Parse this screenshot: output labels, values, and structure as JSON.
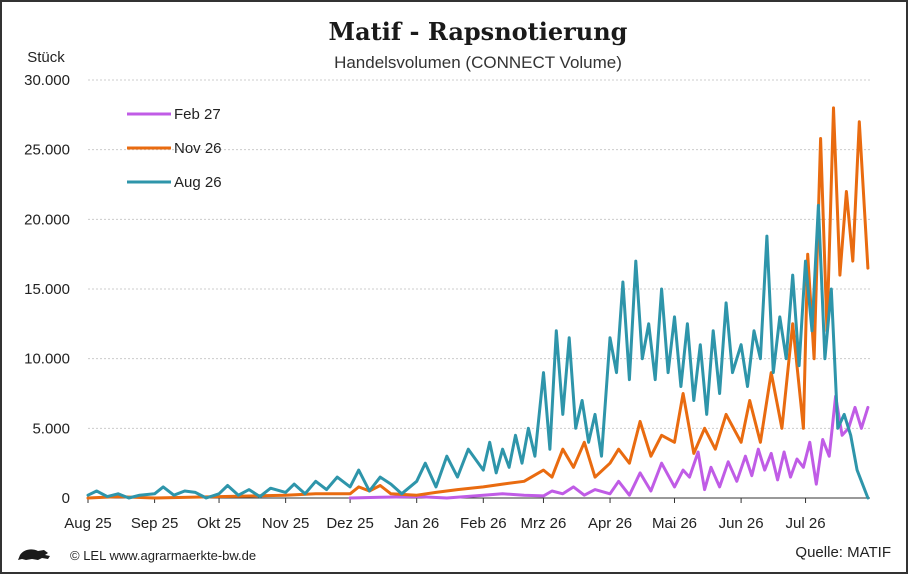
{
  "chart_data": {
    "type": "line",
    "title": "Matif - Rapsnotierung",
    "subtitle": "Handelsvolumen (CONNECT Volume)",
    "ylabel": "Stück",
    "xlabel": "",
    "ylim": [
      0,
      30000
    ],
    "yticks": [
      0,
      5000,
      10000,
      15000,
      20000,
      25000,
      30000
    ],
    "ytick_labels": [
      "0",
      "5.000",
      "10.000",
      "15.000",
      "20.000",
      "25.000",
      "30.000"
    ],
    "xlim": [
      "2025-08-01",
      "2026-07-31"
    ],
    "xticks": [
      "2025-08-01",
      "2025-09-01",
      "2025-10-01",
      "2025-11-01",
      "2025-12-01",
      "2026-01-01",
      "2026-02-01",
      "2026-03-01",
      "2026-04-01",
      "2026-05-01",
      "2026-06-01",
      "2026-07-01"
    ],
    "xtick_labels": [
      "Aug 25",
      "Sep 25",
      "Okt 25",
      "Nov 25",
      "Dez 25",
      "Jan 26",
      "Feb 26",
      "Mrz 26",
      "Apr 26",
      "Mai 26",
      "Jun 26",
      "Jul 26"
    ],
    "grid": "horizontal dotted",
    "legend_position": "top-left",
    "series": [
      {
        "name": "Feb 27",
        "color": "#c05ce6",
        "x": [
          "2025-12-01",
          "2025-12-15",
          "2026-01-02",
          "2026-01-15",
          "2026-02-01",
          "2026-02-10",
          "2026-02-20",
          "2026-03-01",
          "2026-03-05",
          "2026-03-10",
          "2026-03-15",
          "2026-03-20",
          "2026-03-25",
          "2026-04-01",
          "2026-04-05",
          "2026-04-10",
          "2026-04-15",
          "2026-04-20",
          "2026-04-25",
          "2026-05-01",
          "2026-05-05",
          "2026-05-08",
          "2026-05-12",
          "2026-05-15",
          "2026-05-18",
          "2026-05-22",
          "2026-05-26",
          "2026-05-30",
          "2026-06-03",
          "2026-06-06",
          "2026-06-09",
          "2026-06-12",
          "2026-06-15",
          "2026-06-18",
          "2026-06-21",
          "2026-06-24",
          "2026-06-27",
          "2026-06-30",
          "2026-07-03",
          "2026-07-06",
          "2026-07-09",
          "2026-07-12",
          "2026-07-15",
          "2026-07-18",
          "2026-07-21",
          "2026-07-24",
          "2026-07-27",
          "2026-07-30"
        ],
        "values": [
          0,
          50,
          100,
          0,
          200,
          300,
          200,
          150,
          500,
          300,
          800,
          200,
          600,
          300,
          1200,
          200,
          1800,
          500,
          2500,
          800,
          2000,
          1500,
          3300,
          600,
          2200,
          800,
          2600,
          1200,
          3000,
          1600,
          3500,
          2000,
          3200,
          1300,
          3300,
          1500,
          2800,
          2200,
          4000,
          1000,
          4200,
          3000,
          7300,
          4500,
          5000,
          6500,
          5000,
          6500
        ]
      },
      {
        "name": "Nov 26",
        "color": "#e96b10",
        "x": [
          "2025-08-01",
          "2025-08-15",
          "2025-09-01",
          "2025-10-01",
          "2025-11-01",
          "2025-11-15",
          "2025-12-01",
          "2025-12-05",
          "2025-12-10",
          "2025-12-15",
          "2025-12-20",
          "2026-01-01",
          "2026-01-10",
          "2026-01-20",
          "2026-02-01",
          "2026-02-10",
          "2026-02-20",
          "2026-03-01",
          "2026-03-05",
          "2026-03-10",
          "2026-03-15",
          "2026-03-20",
          "2026-03-25",
          "2026-04-01",
          "2026-04-05",
          "2026-04-10",
          "2026-04-15",
          "2026-04-20",
          "2026-04-25",
          "2026-05-01",
          "2026-05-05",
          "2026-05-10",
          "2026-05-15",
          "2026-05-20",
          "2026-05-25",
          "2026-06-01",
          "2026-06-05",
          "2026-06-10",
          "2026-06-15",
          "2026-06-20",
          "2026-06-25",
          "2026-06-30",
          "2026-07-02",
          "2026-07-05",
          "2026-07-08",
          "2026-07-11",
          "2026-07-14",
          "2026-07-17",
          "2026-07-20",
          "2026-07-23",
          "2026-07-26",
          "2026-07-30"
        ],
        "values": [
          0,
          100,
          0,
          100,
          200,
          300,
          300,
          800,
          500,
          900,
          300,
          200,
          400,
          600,
          800,
          1000,
          1200,
          2000,
          1500,
          3500,
          2200,
          4000,
          1500,
          2500,
          3500,
          2500,
          5500,
          3000,
          4500,
          4000,
          7500,
          3200,
          5000,
          3500,
          6000,
          4000,
          7000,
          4000,
          9000,
          5000,
          12500,
          5000,
          17500,
          10000,
          25800,
          12000,
          28000,
          16000,
          22000,
          17000,
          27000,
          16500
        ]
      },
      {
        "name": "Aug 26",
        "color": "#2e95aa",
        "x": [
          "2025-08-01",
          "2025-08-05",
          "2025-08-10",
          "2025-08-15",
          "2025-08-20",
          "2025-08-25",
          "2025-09-01",
          "2025-09-05",
          "2025-09-10",
          "2025-09-15",
          "2025-09-20",
          "2025-09-25",
          "2025-10-01",
          "2025-10-05",
          "2025-10-10",
          "2025-10-15",
          "2025-10-20",
          "2025-10-25",
          "2025-11-01",
          "2025-11-05",
          "2025-11-10",
          "2025-11-15",
          "2025-11-20",
          "2025-11-25",
          "2025-12-01",
          "2025-12-05",
          "2025-12-10",
          "2025-12-15",
          "2025-12-20",
          "2025-12-25",
          "2026-01-01",
          "2026-01-05",
          "2026-01-10",
          "2026-01-15",
          "2026-01-20",
          "2026-01-25",
          "2026-02-01",
          "2026-02-04",
          "2026-02-07",
          "2026-02-10",
          "2026-02-13",
          "2026-02-16",
          "2026-02-19",
          "2026-02-22",
          "2026-02-25",
          "2026-03-01",
          "2026-03-04",
          "2026-03-07",
          "2026-03-10",
          "2026-03-13",
          "2026-03-16",
          "2026-03-19",
          "2026-03-22",
          "2026-03-25",
          "2026-03-28",
          "2026-04-01",
          "2026-04-04",
          "2026-04-07",
          "2026-04-10",
          "2026-04-13",
          "2026-04-16",
          "2026-04-19",
          "2026-04-22",
          "2026-04-25",
          "2026-04-28",
          "2026-05-01",
          "2026-05-04",
          "2026-05-07",
          "2026-05-10",
          "2026-05-13",
          "2026-05-16",
          "2026-05-19",
          "2026-05-22",
          "2026-05-25",
          "2026-05-28",
          "2026-06-01",
          "2026-06-04",
          "2026-06-07",
          "2026-06-10",
          "2026-06-13",
          "2026-06-16",
          "2026-06-19",
          "2026-06-22",
          "2026-06-25",
          "2026-06-28",
          "2026-07-01",
          "2026-07-04",
          "2026-07-07",
          "2026-07-10",
          "2026-07-13",
          "2026-07-16",
          "2026-07-19",
          "2026-07-22",
          "2026-07-25",
          "2026-07-30"
        ],
        "values": [
          200,
          500,
          100,
          300,
          0,
          200,
          300,
          800,
          200,
          500,
          400,
          0,
          300,
          900,
          200,
          600,
          100,
          700,
          400,
          1000,
          300,
          1200,
          600,
          1500,
          800,
          2000,
          500,
          1500,
          1000,
          300,
          1200,
          2500,
          800,
          3000,
          1500,
          3500,
          2000,
          4000,
          1800,
          3500,
          2200,
          4500,
          2500,
          5000,
          3000,
          9000,
          3500,
          12000,
          6000,
          11500,
          5000,
          7000,
          4000,
          6000,
          3000,
          11500,
          9000,
          15500,
          8500,
          17000,
          10000,
          12500,
          8500,
          15000,
          9000,
          13000,
          8000,
          12500,
          7000,
          11000,
          6000,
          12000,
          7500,
          14000,
          9000,
          11000,
          8000,
          12000,
          10000,
          18800,
          9000,
          13000,
          10000,
          16000,
          9500,
          17000,
          12000,
          21000,
          10000,
          15000,
          5000,
          6000,
          4500,
          2000,
          0
        ]
      }
    ]
  },
  "footer": {
    "copyright": "© LEL www.agrarmaerkte-bw.de",
    "source": "Quelle: MATIF",
    "logo_icon": "lion-icon"
  }
}
